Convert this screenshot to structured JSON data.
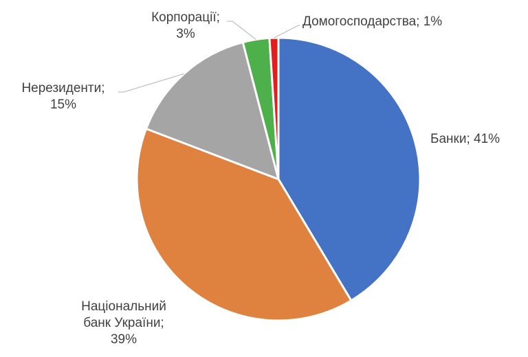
{
  "chart_data": {
    "type": "pie",
    "title": "",
    "legend": "none",
    "slices": [
      {
        "name": "Банки",
        "value": 41,
        "color": "#4472C4",
        "label_lines": [
          "Банки; 41%"
        ]
      },
      {
        "name": "Національний банк України",
        "value": 39,
        "color": "#E0823F",
        "label_lines": [
          "Національний",
          "банк України;",
          "39%"
        ]
      },
      {
        "name": "Нерезиденти",
        "value": 15,
        "color": "#A5A5A5",
        "label_lines": [
          "Нерезиденти;",
          "15%"
        ]
      },
      {
        "name": "Корпорації",
        "value": 3,
        "color": "#4DB04A",
        "label_lines": [
          "Корпорації;",
          "3%"
        ]
      },
      {
        "name": "Домогосподарства",
        "value": 1,
        "color": "#E02020",
        "label_lines": [
          "Домогосподарства; 1%"
        ]
      }
    ]
  }
}
